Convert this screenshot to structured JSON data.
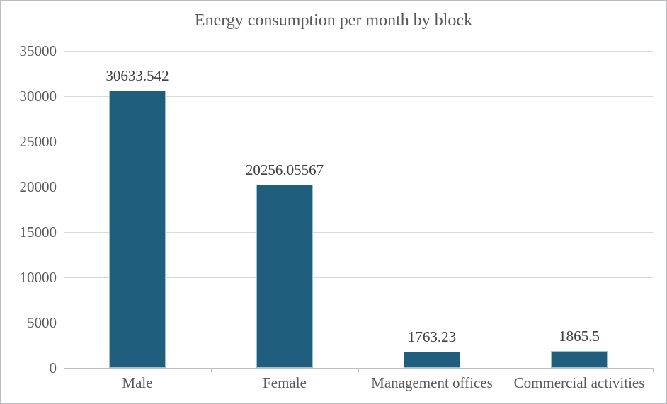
{
  "chart_data": {
    "type": "bar",
    "title": "Energy consumption per month by block",
    "categories": [
      "Male",
      "Female",
      "Management offices",
      "Commercial activities"
    ],
    "values": [
      30633.542,
      20256.05567,
      1763.23,
      1865.5
    ],
    "data_labels": [
      "30633.542",
      "20256.05567",
      "1763.23",
      "1865.5"
    ],
    "xlabel": "",
    "ylabel": "",
    "ylim": [
      0,
      35000
    ],
    "yticks": [
      0,
      5000,
      10000,
      15000,
      20000,
      25000,
      30000,
      35000
    ],
    "ytick_labels": [
      "0",
      "5000",
      "10000",
      "15000",
      "20000",
      "25000",
      "30000",
      "35000"
    ],
    "grid": "horizontal",
    "legend": "none",
    "colors": {
      "bar_fill": "#1F5F7D",
      "bar_edge": "#9CC3D4",
      "text": "#595959",
      "data_label_text": "#404040",
      "gridline": "#D9D9D9",
      "axis_line": "#BFBFBF",
      "background": "#FFFFFF",
      "frame_border": "#B9BDC1"
    }
  }
}
